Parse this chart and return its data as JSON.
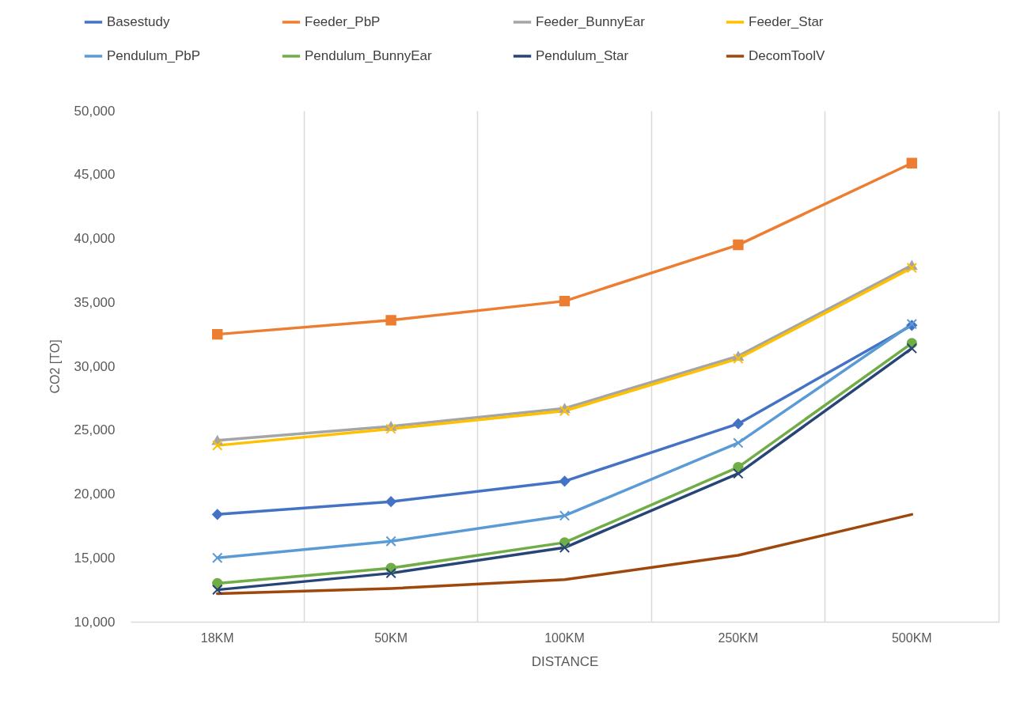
{
  "chart_data": {
    "type": "line",
    "xlabel": "DISTANCE",
    "ylabel": "CO2 [TO]",
    "categories": [
      "18KM",
      "50KM",
      "100KM",
      "250KM",
      "500KM"
    ],
    "ylim": [
      10000,
      50000
    ],
    "yticks": [
      {
        "value": 10000,
        "label": "10,000"
      },
      {
        "value": 15000,
        "label": "15,000"
      },
      {
        "value": 20000,
        "label": "20,000"
      },
      {
        "value": 25000,
        "label": "25,000"
      },
      {
        "value": 30000,
        "label": "30,000"
      },
      {
        "value": 35000,
        "label": "35,000"
      },
      {
        "value": 40000,
        "label": "40,000"
      },
      {
        "value": 45000,
        "label": "45,000"
      },
      {
        "value": 50000,
        "label": "50,000"
      }
    ],
    "grid": "x",
    "legend": "top",
    "series": [
      {
        "name": "Basestudy",
        "color": "#4472c4",
        "marker": "diamond",
        "values": [
          18400,
          19400,
          21000,
          25500,
          33200
        ]
      },
      {
        "name": "Feeder_PbP",
        "color": "#ed7d31",
        "marker": "square",
        "values": [
          32500,
          33600,
          35100,
          39500,
          45900
        ]
      },
      {
        "name": "Feeder_BunnyEar",
        "color": "#a5a5a5",
        "marker": "triangle",
        "values": [
          24200,
          25300,
          26700,
          30800,
          37900
        ]
      },
      {
        "name": "Feeder_Star",
        "color": "#ffc000",
        "marker": "cross",
        "values": [
          23800,
          25100,
          26500,
          30600,
          37700
        ]
      },
      {
        "name": "Pendulum_PbP",
        "color": "#5b9bd5",
        "marker": "cross",
        "values": [
          15000,
          16300,
          18300,
          24000,
          33300
        ]
      },
      {
        "name": "Pendulum_BunnyEar",
        "color": "#70ad47",
        "marker": "circle",
        "values": [
          13000,
          14200,
          16200,
          22100,
          31800
        ]
      },
      {
        "name": "Pendulum_Star",
        "color": "#264478",
        "marker": "cross",
        "values": [
          12500,
          13800,
          15800,
          21600,
          31400
        ]
      },
      {
        "name": "DecomToolV",
        "color": "#9e480e",
        "marker": "none",
        "values": [
          12200,
          12600,
          13300,
          15200,
          18400
        ]
      }
    ]
  }
}
